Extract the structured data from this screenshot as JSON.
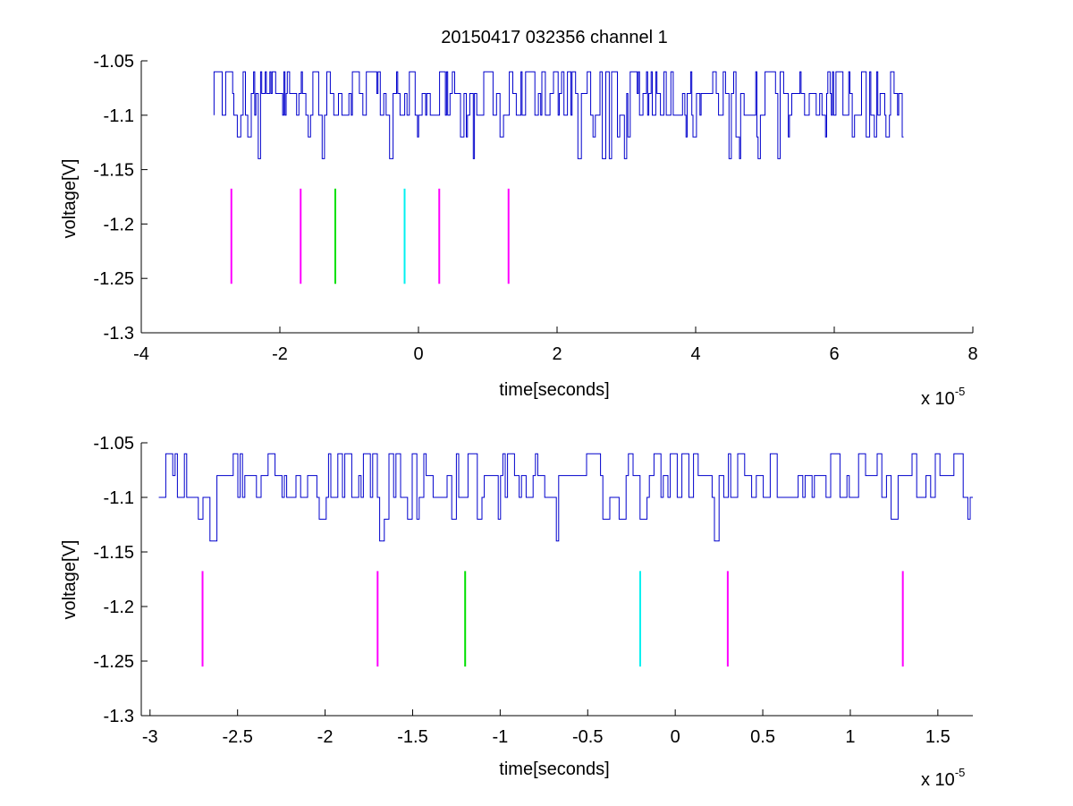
{
  "title": "20150417 032356 channel 1",
  "colors": {
    "signal": "#0000cc",
    "magenta": "#ff00ff",
    "green": "#00e000",
    "cyan": "#00f0f0",
    "axes": "#000000"
  },
  "chart_data": [
    {
      "type": "line",
      "title": "20150417 032356 channel 1",
      "xlabel": "time[seconds]",
      "ylabel": "voltage[V]",
      "x_multiplier": "x 10",
      "x_exponent": "-5",
      "xlim": [
        -4,
        8
      ],
      "ylim": [
        -1.3,
        -1.05
      ],
      "xticks": [
        "-4",
        "-2",
        "0",
        "2",
        "4",
        "6",
        "8"
      ],
      "yticks": [
        "-1.05",
        "-1.1",
        "-1.15",
        "-1.2",
        "-1.25",
        "-1.3"
      ],
      "xtick_values": [
        -4,
        -2,
        0,
        2,
        4,
        6,
        8
      ],
      "ytick_values": [
        -1.05,
        -1.1,
        -1.15,
        -1.2,
        -1.25,
        -1.3
      ],
      "grid": false,
      "series": [
        {
          "x_range": [
            -2.95,
            7.0
          ],
          "levels": [
            -1.06,
            -1.08,
            -1.1,
            -1.12,
            -1.14
          ]
        }
      ],
      "markers": [
        {
          "x": -2.7,
          "color": "magenta",
          "y": [
            -1.1675,
            -1.255
          ]
        },
        {
          "x": -1.7,
          "color": "magenta",
          "y": [
            -1.1675,
            -1.255
          ]
        },
        {
          "x": -1.2,
          "color": "green",
          "y": [
            -1.1675,
            -1.255
          ]
        },
        {
          "x": -0.2,
          "color": "cyan",
          "y": [
            -1.1675,
            -1.255
          ]
        },
        {
          "x": 0.3,
          "color": "magenta",
          "y": [
            -1.1675,
            -1.255
          ]
        },
        {
          "x": 1.3,
          "color": "magenta",
          "y": [
            -1.1675,
            -1.255
          ]
        }
      ]
    },
    {
      "type": "line",
      "xlabel": "time[seconds]",
      "ylabel": "voltage[V]",
      "x_multiplier": "x 10",
      "x_exponent": "-5",
      "xlim": [
        -3.05,
        1.7
      ],
      "ylim": [
        -1.3,
        -1.05
      ],
      "xticks": [
        "-3",
        "-2.5",
        "-2",
        "-1.5",
        "-1",
        "-0.5",
        "0",
        "0.5",
        "1",
        "1.5"
      ],
      "yticks": [
        "-1.05",
        "-1.1",
        "-1.15",
        "-1.2",
        "-1.25",
        "-1.3"
      ],
      "xtick_values": [
        -3,
        -2.5,
        -2,
        -1.5,
        -1,
        -0.5,
        0,
        0.5,
        1,
        1.5
      ],
      "ytick_values": [
        -1.05,
        -1.1,
        -1.15,
        -1.2,
        -1.25,
        -1.3
      ],
      "grid": false,
      "series": [
        {
          "x_range": [
            -2.95,
            1.7
          ],
          "levels": [
            -1.06,
            -1.08,
            -1.1,
            -1.12,
            -1.14
          ]
        }
      ],
      "markers": [
        {
          "x": -2.7,
          "color": "magenta",
          "y": [
            -1.1675,
            -1.255
          ]
        },
        {
          "x": -1.7,
          "color": "magenta",
          "y": [
            -1.1675,
            -1.255
          ]
        },
        {
          "x": -1.2,
          "color": "green",
          "y": [
            -1.1675,
            -1.255
          ]
        },
        {
          "x": -0.2,
          "color": "cyan",
          "y": [
            -1.1675,
            -1.255
          ]
        },
        {
          "x": 0.3,
          "color": "magenta",
          "y": [
            -1.1675,
            -1.255
          ]
        },
        {
          "x": 1.3,
          "color": "magenta",
          "y": [
            -1.1675,
            -1.255
          ]
        }
      ]
    }
  ]
}
